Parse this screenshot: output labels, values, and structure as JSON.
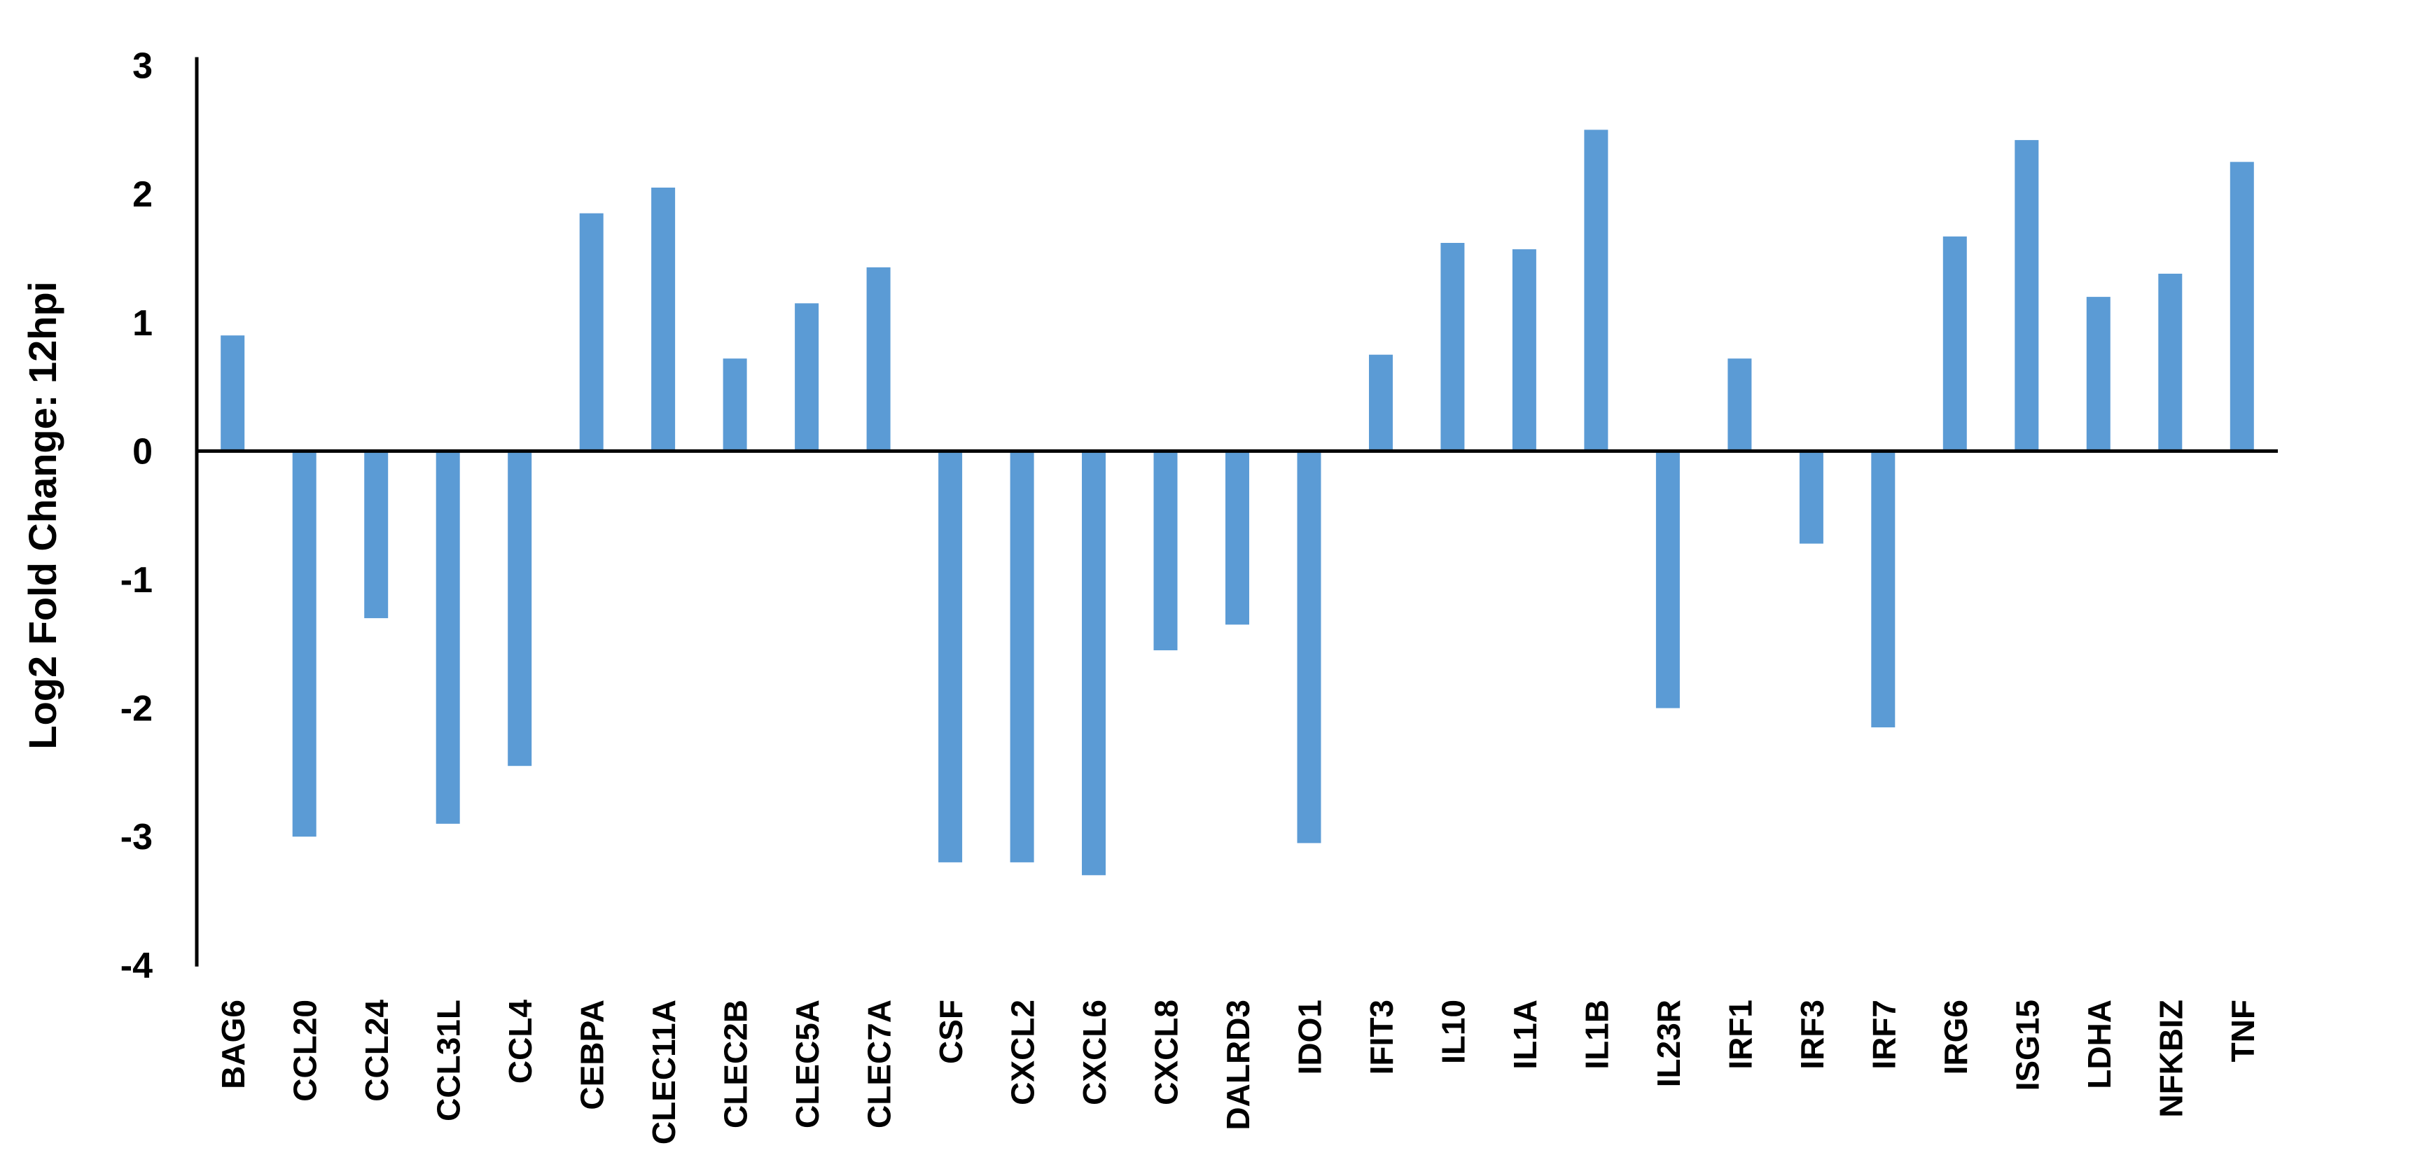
{
  "chart_data": {
    "type": "bar",
    "title": "",
    "xlabel": "",
    "ylabel": "Log2 Fold Change: 12hpi",
    "ylim": [
      -4,
      3
    ],
    "yticks": [
      3,
      2,
      1,
      0,
      -1,
      -2,
      -3,
      -4
    ],
    "grid": false,
    "legend": false,
    "legend_position": null,
    "bar_color": "#5B9BD5",
    "axis_color": "#000000",
    "text_color": "#000000",
    "background_color": "#FFFFFF",
    "categories": [
      "BAG6",
      "CCL20",
      "CCL24",
      "CCL31L",
      "CCL4",
      "CEBPA",
      "CLEC11A",
      "CLEC2B",
      "CLEC5A",
      "CLEC7A",
      "CSF",
      "CXCL2",
      "CXCL6",
      "CXCL8",
      "DALRD3",
      "IDO1",
      "IFIT3",
      "IL10",
      "IL1A",
      "IL1B",
      "IL23R",
      "IRF1",
      "IRF3",
      "IRF7",
      "IRG6",
      "ISG15",
      "LDHA",
      "NFKBIZ",
      "TNF"
    ],
    "values": [
      0.9,
      -3.0,
      -1.3,
      -2.9,
      -2.45,
      1.85,
      2.05,
      0.72,
      1.15,
      1.43,
      -3.2,
      -3.2,
      -3.3,
      -1.55,
      -1.35,
      -3.05,
      0.75,
      1.62,
      1.57,
      2.5,
      -2.0,
      0.72,
      -0.72,
      -2.15,
      1.67,
      2.42,
      1.2,
      1.38,
      2.25
    ]
  }
}
